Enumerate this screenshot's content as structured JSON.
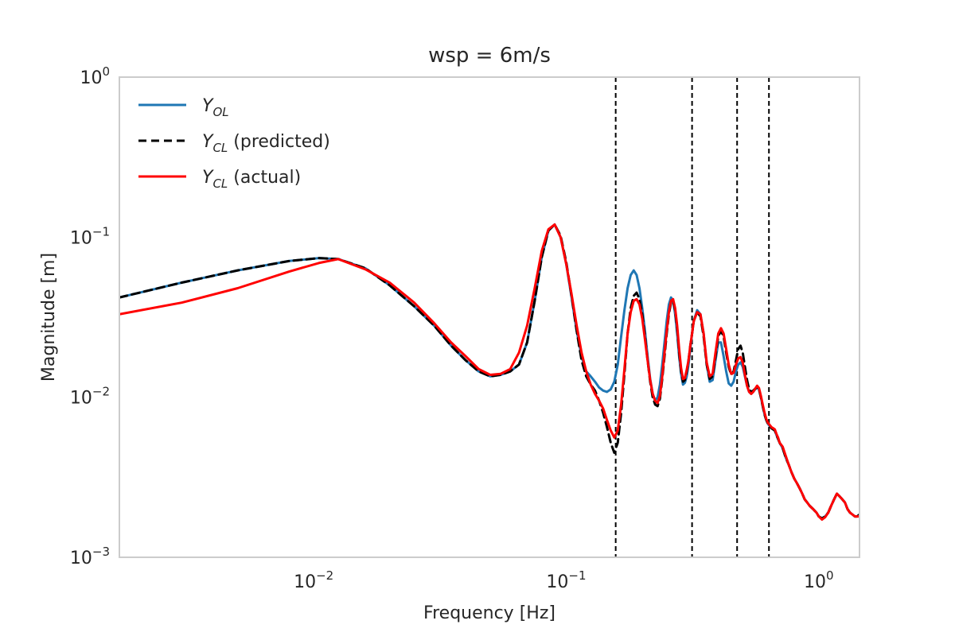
{
  "chart_data": {
    "type": "line",
    "title": "wsp = 6m/s",
    "xlabel": "Frequency [Hz]",
    "ylabel": "Magnitude [m]",
    "x_scale": "log",
    "y_scale": "log",
    "xlim": [
      0.0017,
      1.45
    ],
    "ylim": [
      0.001,
      1.0
    ],
    "grid": false,
    "legend_position": "upper-left",
    "x_ticks": [
      {
        "value": 0.01,
        "base": "10",
        "exp": "−2"
      },
      {
        "value": 0.1,
        "base": "10",
        "exp": "−1"
      },
      {
        "value": 1.0,
        "base": "10",
        "exp": "0"
      }
    ],
    "y_ticks": [
      {
        "value": 0.001,
        "base": "10",
        "exp": "−3"
      },
      {
        "value": 0.01,
        "base": "10",
        "exp": "−2"
      },
      {
        "value": 0.1,
        "base": "10",
        "exp": "−1"
      },
      {
        "value": 1.0,
        "base": "10",
        "exp": "0"
      }
    ],
    "vertical_lines": [
      0.157,
      0.315,
      0.475,
      0.635
    ],
    "series": [
      {
        "name": "Y_OL",
        "legend_main": "Y",
        "legend_sub": "OL",
        "legend_suffix": "",
        "color": "#1f77b4",
        "dash": "solid",
        "x": [
          0.0017,
          0.003,
          0.005,
          0.008,
          0.0105,
          0.0125,
          0.016,
          0.02,
          0.025,
          0.03,
          0.035,
          0.04,
          0.045,
          0.05,
          0.055,
          0.06,
          0.065,
          0.07,
          0.075,
          0.08,
          0.085,
          0.09,
          0.095,
          0.1,
          0.105,
          0.11,
          0.115,
          0.12,
          0.125,
          0.13,
          0.135,
          0.14,
          0.145,
          0.15,
          0.155,
          0.16,
          0.165,
          0.17,
          0.175,
          0.18,
          0.185,
          0.19,
          0.195,
          0.2,
          0.205,
          0.21,
          0.215,
          0.22,
          0.225,
          0.23,
          0.235,
          0.24,
          0.245,
          0.25,
          0.255,
          0.26,
          0.265,
          0.27,
          0.275,
          0.28,
          0.285,
          0.29,
          0.295,
          0.3,
          0.305,
          0.31,
          0.315,
          0.32,
          0.33,
          0.34,
          0.35,
          0.36,
          0.37,
          0.38,
          0.39,
          0.4,
          0.41,
          0.42,
          0.43,
          0.44,
          0.45,
          0.46,
          0.47,
          0.48,
          0.49,
          0.5,
          0.51,
          0.52,
          0.53,
          0.54,
          0.55,
          0.56,
          0.57,
          0.58,
          0.59,
          0.6,
          0.61,
          0.62,
          0.63,
          0.64,
          0.65,
          0.66,
          0.67,
          0.68,
          0.69,
          0.7,
          0.72,
          0.74,
          0.76,
          0.78,
          0.8,
          0.82,
          0.84,
          0.86,
          0.88,
          0.9,
          0.92,
          0.95,
          0.98,
          1.0,
          1.03,
          1.06,
          1.09,
          1.12,
          1.15,
          1.18,
          1.21,
          1.24,
          1.27,
          1.3,
          1.33,
          1.36,
          1.39,
          1.42,
          1.45
        ],
        "y": [
          0.042,
          0.052,
          0.062,
          0.071,
          0.074,
          0.073,
          0.064,
          0.05,
          0.037,
          0.028,
          0.021,
          0.017,
          0.0145,
          0.0135,
          0.0138,
          0.0145,
          0.016,
          0.022,
          0.04,
          0.075,
          0.11,
          0.12,
          0.1,
          0.068,
          0.042,
          0.026,
          0.018,
          0.0145,
          0.0135,
          0.0125,
          0.0115,
          0.011,
          0.0108,
          0.0112,
          0.0125,
          0.016,
          0.024,
          0.035,
          0.048,
          0.058,
          0.062,
          0.058,
          0.048,
          0.036,
          0.026,
          0.018,
          0.013,
          0.0105,
          0.0095,
          0.01,
          0.012,
          0.016,
          0.022,
          0.03,
          0.038,
          0.042,
          0.04,
          0.033,
          0.025,
          0.018,
          0.014,
          0.012,
          0.0123,
          0.0135,
          0.016,
          0.02,
          0.025,
          0.03,
          0.035,
          0.033,
          0.025,
          0.016,
          0.0125,
          0.0128,
          0.017,
          0.022,
          0.022,
          0.018,
          0.0145,
          0.0122,
          0.0118,
          0.0125,
          0.0145,
          0.016,
          0.0165,
          0.0155,
          0.0135,
          0.0118,
          0.0108,
          0.0105,
          0.0108,
          0.0112,
          0.0115,
          0.0112,
          0.01,
          0.0088,
          0.0078,
          0.0072,
          0.0068,
          0.0066,
          0.0064,
          0.0063,
          0.0062,
          0.0058,
          0.0055,
          0.0052,
          0.0048,
          0.0042,
          0.0038,
          0.0034,
          0.0031,
          0.0029,
          0.0027,
          0.0025,
          0.0023,
          0.0022,
          0.0021,
          0.002,
          0.0019,
          0.0018,
          0.00175,
          0.0018,
          0.0019,
          0.0021,
          0.0023,
          0.0025,
          0.0024,
          0.0023,
          0.0022,
          0.002,
          0.0019,
          0.00185,
          0.0018,
          0.0018,
          0.00185
        ]
      },
      {
        "name": "Y_CL (predicted)",
        "legend_main": "Y",
        "legend_sub": "CL",
        "legend_suffix": " (predicted)",
        "color": "#000000",
        "dash": "dashed",
        "x": [
          0.0017,
          0.003,
          0.005,
          0.008,
          0.0105,
          0.0125,
          0.016,
          0.02,
          0.025,
          0.03,
          0.035,
          0.04,
          0.045,
          0.05,
          0.055,
          0.06,
          0.065,
          0.07,
          0.075,
          0.08,
          0.085,
          0.09,
          0.095,
          0.1,
          0.105,
          0.11,
          0.115,
          0.12,
          0.125,
          0.13,
          0.135,
          0.14,
          0.145,
          0.15,
          0.155,
          0.16,
          0.165,
          0.17,
          0.175,
          0.18,
          0.185,
          0.19,
          0.195,
          0.2,
          0.205,
          0.21,
          0.215,
          0.22,
          0.225,
          0.23,
          0.235,
          0.24,
          0.245,
          0.25,
          0.255,
          0.26,
          0.265,
          0.27,
          0.275,
          0.28,
          0.285,
          0.29,
          0.295,
          0.3,
          0.305,
          0.31,
          0.315,
          0.32,
          0.33,
          0.34,
          0.35,
          0.36,
          0.37,
          0.38,
          0.39,
          0.4,
          0.41,
          0.42,
          0.43,
          0.44,
          0.45,
          0.46,
          0.47,
          0.48,
          0.49,
          0.5,
          0.51,
          0.52,
          0.53,
          0.54,
          0.55,
          0.56,
          0.57,
          0.58,
          0.59,
          0.6,
          0.61,
          0.62,
          0.63,
          0.64,
          0.65,
          0.66,
          0.67,
          0.68,
          0.69,
          0.7,
          0.72,
          0.74,
          0.76,
          0.78,
          0.8,
          0.82,
          0.84,
          0.86,
          0.88,
          0.9,
          0.92,
          0.95,
          0.98,
          1.0,
          1.03,
          1.06,
          1.09,
          1.12,
          1.15,
          1.18,
          1.21,
          1.24,
          1.27,
          1.3,
          1.33,
          1.36,
          1.39,
          1.42,
          1.45
        ],
        "y": [
          0.042,
          0.052,
          0.062,
          0.071,
          0.074,
          0.073,
          0.064,
          0.05,
          0.037,
          0.028,
          0.021,
          0.017,
          0.0145,
          0.0135,
          0.0138,
          0.0145,
          0.016,
          0.022,
          0.04,
          0.075,
          0.11,
          0.12,
          0.102,
          0.07,
          0.043,
          0.026,
          0.017,
          0.0135,
          0.012,
          0.011,
          0.0095,
          0.008,
          0.0065,
          0.0052,
          0.0045,
          0.0052,
          0.008,
          0.014,
          0.025,
          0.036,
          0.043,
          0.045,
          0.041,
          0.033,
          0.024,
          0.017,
          0.0125,
          0.01,
          0.009,
          0.0088,
          0.0098,
          0.013,
          0.018,
          0.025,
          0.033,
          0.039,
          0.04,
          0.035,
          0.027,
          0.019,
          0.0145,
          0.0125,
          0.0128,
          0.0145,
          0.017,
          0.021,
          0.025,
          0.03,
          0.034,
          0.032,
          0.024,
          0.016,
          0.013,
          0.0135,
          0.018,
          0.024,
          0.026,
          0.024,
          0.019,
          0.0155,
          0.0138,
          0.0145,
          0.017,
          0.02,
          0.021,
          0.019,
          0.0155,
          0.0128,
          0.0112,
          0.0108,
          0.011,
          0.0113,
          0.0115,
          0.0112,
          0.01,
          0.0088,
          0.0078,
          0.0072,
          0.0068,
          0.0066,
          0.0064,
          0.0063,
          0.0062,
          0.0058,
          0.0055,
          0.0052,
          0.0048,
          0.0042,
          0.0038,
          0.0034,
          0.0031,
          0.0029,
          0.0027,
          0.0025,
          0.0023,
          0.0022,
          0.0021,
          0.002,
          0.0019,
          0.0018,
          0.00175,
          0.0018,
          0.0019,
          0.0021,
          0.0023,
          0.0025,
          0.0024,
          0.0023,
          0.0022,
          0.002,
          0.0019,
          0.00185,
          0.0018,
          0.0018,
          0.00185
        ]
      },
      {
        "name": "Y_CL (actual)",
        "legend_main": "Y",
        "legend_sub": "CL",
        "legend_suffix": " (actual)",
        "color": "#ff0000",
        "dash": "solid",
        "x": [
          0.0017,
          0.003,
          0.005,
          0.008,
          0.0105,
          0.0125,
          0.016,
          0.02,
          0.025,
          0.03,
          0.035,
          0.04,
          0.045,
          0.05,
          0.055,
          0.06,
          0.065,
          0.07,
          0.075,
          0.08,
          0.085,
          0.09,
          0.095,
          0.1,
          0.105,
          0.11,
          0.115,
          0.12,
          0.125,
          0.13,
          0.135,
          0.14,
          0.145,
          0.15,
          0.155,
          0.16,
          0.165,
          0.17,
          0.175,
          0.18,
          0.185,
          0.19,
          0.195,
          0.2,
          0.205,
          0.21,
          0.215,
          0.22,
          0.225,
          0.23,
          0.235,
          0.24,
          0.245,
          0.25,
          0.255,
          0.26,
          0.265,
          0.27,
          0.275,
          0.28,
          0.285,
          0.29,
          0.295,
          0.3,
          0.305,
          0.31,
          0.315,
          0.32,
          0.33,
          0.34,
          0.35,
          0.36,
          0.37,
          0.38,
          0.39,
          0.4,
          0.41,
          0.42,
          0.43,
          0.44,
          0.45,
          0.46,
          0.47,
          0.48,
          0.49,
          0.5,
          0.51,
          0.52,
          0.53,
          0.54,
          0.55,
          0.56,
          0.57,
          0.58,
          0.59,
          0.6,
          0.61,
          0.62,
          0.63,
          0.64,
          0.65,
          0.66,
          0.67,
          0.68,
          0.69,
          0.7,
          0.72,
          0.74,
          0.76,
          0.78,
          0.8,
          0.82,
          0.84,
          0.86,
          0.88,
          0.9,
          0.92,
          0.95,
          0.98,
          1.0,
          1.03,
          1.06,
          1.09,
          1.12,
          1.15,
          1.18,
          1.21,
          1.24,
          1.27,
          1.3,
          1.33,
          1.36,
          1.39,
          1.42,
          1.45
        ],
        "y": [
          0.033,
          0.039,
          0.048,
          0.061,
          0.069,
          0.073,
          0.063,
          0.052,
          0.039,
          0.029,
          0.022,
          0.018,
          0.015,
          0.0138,
          0.014,
          0.015,
          0.019,
          0.028,
          0.048,
          0.082,
          0.112,
          0.12,
          0.1,
          0.068,
          0.044,
          0.028,
          0.019,
          0.0145,
          0.012,
          0.0105,
          0.0095,
          0.0085,
          0.0072,
          0.0062,
          0.0056,
          0.0062,
          0.009,
          0.015,
          0.025,
          0.034,
          0.04,
          0.041,
          0.038,
          0.031,
          0.023,
          0.017,
          0.0128,
          0.0105,
          0.0095,
          0.0092,
          0.0102,
          0.0135,
          0.019,
          0.026,
          0.034,
          0.04,
          0.041,
          0.036,
          0.028,
          0.02,
          0.0152,
          0.013,
          0.0132,
          0.0148,
          0.017,
          0.021,
          0.025,
          0.03,
          0.034,
          0.033,
          0.025,
          0.0165,
          0.0135,
          0.014,
          0.019,
          0.025,
          0.027,
          0.025,
          0.02,
          0.016,
          0.014,
          0.0142,
          0.016,
          0.0175,
          0.0178,
          0.0165,
          0.0138,
          0.0118,
          0.0108,
          0.0105,
          0.0108,
          0.0113,
          0.0118,
          0.0114,
          0.0102,
          0.009,
          0.008,
          0.0073,
          0.0069,
          0.0067,
          0.0065,
          0.0064,
          0.0063,
          0.0059,
          0.0056,
          0.0052,
          0.0049,
          0.0043,
          0.0038,
          0.0034,
          0.0031,
          0.0029,
          0.0027,
          0.0025,
          0.0023,
          0.0022,
          0.0021,
          0.002,
          0.0019,
          0.0018,
          0.00172,
          0.00178,
          0.0019,
          0.0021,
          0.0023,
          0.0025,
          0.0024,
          0.0023,
          0.0022,
          0.002,
          0.0019,
          0.00185,
          0.0018,
          0.0018,
          0.0018
        ]
      }
    ]
  }
}
